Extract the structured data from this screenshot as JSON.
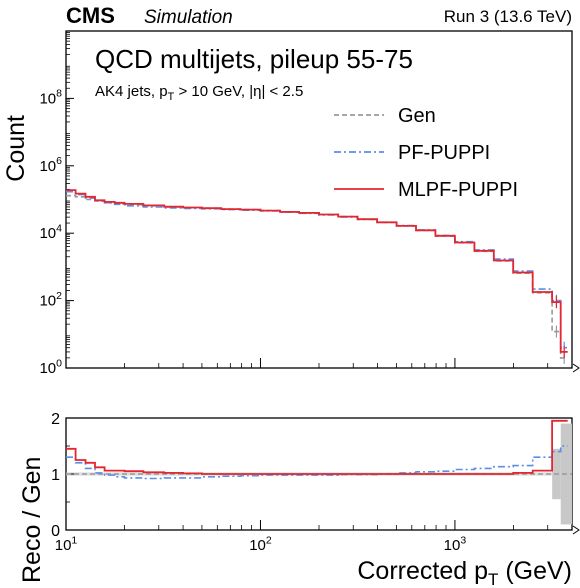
{
  "header": {
    "experiment": "CMS",
    "tag": "Simulation",
    "run": "Run 3 (13.6 TeV)"
  },
  "annotation": {
    "title": "QCD multijets, pileup 55-75",
    "cut_prefix": "AK4 jets, p",
    "cut_sub": "T",
    "cut_suffix": " > 10 GeV, |η| < 2.5"
  },
  "colors": {
    "gen": "#999999",
    "pf_puppi": "#5b8ee6",
    "mlpf_puppi": "#e3262f",
    "unc_band": "#c8c8c8"
  },
  "chart_data": [
    {
      "type": "line",
      "style": "step-histogram",
      "ylabel": "Count",
      "xscale": "log",
      "yscale": "log",
      "xlim": [
        10,
        4000
      ],
      "ylim": [
        1,
        10000000000.0
      ],
      "yticks": [
        {
          "value": 1,
          "base": "10",
          "exp": "0"
        },
        {
          "value": 100,
          "base": "10",
          "exp": "2"
        },
        {
          "value": 10000,
          "base": "10",
          "exp": "4"
        },
        {
          "value": 1000000,
          "base": "10",
          "exp": "6"
        },
        {
          "value": 100000000,
          "base": "10",
          "exp": "8"
        }
      ],
      "bin_edges": [
        10,
        11.2,
        12.6,
        14.1,
        15.8,
        17.8,
        20,
        25,
        32,
        40,
        50,
        63,
        79,
        100,
        126,
        158,
        200,
        251,
        316,
        398,
        501,
        631,
        794,
        1000,
        1259,
        1585,
        1995,
        2512,
        3162,
        3500,
        3800,
        4000
      ],
      "legend_position": "top-right",
      "series": [
        {
          "name": "Gen",
          "linestyle": "dashed",
          "values": [
            130000,
            120000,
            100000,
            90000,
            80000,
            75000,
            70000,
            65000,
            60000,
            58000,
            55000,
            52000,
            50000,
            47000,
            43000,
            40000,
            36000,
            31000,
            26000,
            21000,
            16500,
            12000,
            8200,
            5200,
            2900,
            1500,
            650,
            170,
            12,
            2
          ]
        },
        {
          "name": "PF-PUPPI",
          "linestyle": "dashdot",
          "values": [
            170000,
            140000,
            110000,
            90000,
            80000,
            72000,
            65000,
            60000,
            56000,
            54000,
            53000,
            50000,
            48000,
            46000,
            42000,
            39000,
            35000,
            30000,
            25500,
            21000,
            16800,
            12500,
            8600,
            5600,
            3200,
            1700,
            750,
            220,
            100,
            4
          ]
        },
        {
          "name": "MLPF-PUPPI",
          "linestyle": "solid",
          "values": [
            190000,
            150000,
            120000,
            95000,
            85000,
            80000,
            74000,
            67000,
            61000,
            58000,
            55000,
            52000,
            50000,
            47000,
            43000,
            40000,
            36000,
            31000,
            26000,
            21000,
            16500,
            12200,
            8400,
            5300,
            3000,
            1550,
            680,
            180,
            90,
            3
          ]
        }
      ]
    },
    {
      "type": "line",
      "style": "step-histogram",
      "xlabel_prefix": "Corrected p",
      "xlabel_sub": "T",
      "xlabel_suffix": " (GeV)",
      "ylabel": "Reco / Gen",
      "xscale": "log",
      "xlim": [
        10,
        4000
      ],
      "ylim": [
        0,
        2
      ],
      "yticks": [
        "0",
        "1",
        "2"
      ],
      "xticks": [
        {
          "value": 10,
          "base": "10",
          "exp": "1"
        },
        {
          "value": 100,
          "base": "10",
          "exp": "2"
        },
        {
          "value": 1000,
          "base": "10",
          "exp": "3"
        }
      ],
      "reference_line": 1,
      "series": [
        {
          "name": "PF-PUPPI",
          "values": [
            1.3,
            1.2,
            1.1,
            1.02,
            0.98,
            0.95,
            0.93,
            0.92,
            0.93,
            0.93,
            0.95,
            0.96,
            0.97,
            0.98,
            0.98,
            0.98,
            0.98,
            0.99,
            0.99,
            1.0,
            1.02,
            1.04,
            1.05,
            1.08,
            1.1,
            1.13,
            1.15,
            1.3,
            1.4,
            1.5
          ]
        },
        {
          "name": "MLPF-PUPPI",
          "values": [
            1.45,
            1.25,
            1.2,
            1.12,
            1.06,
            1.06,
            1.05,
            1.03,
            1.02,
            1.01,
            1.0,
            1.0,
            1.0,
            1.0,
            1.0,
            1.0,
            1.0,
            1.0,
            1.0,
            1.0,
            1.0,
            1.0,
            1.0,
            1.0,
            1.0,
            1.0,
            1.02,
            1.06,
            1.95,
            1.95
          ]
        }
      ]
    }
  ]
}
